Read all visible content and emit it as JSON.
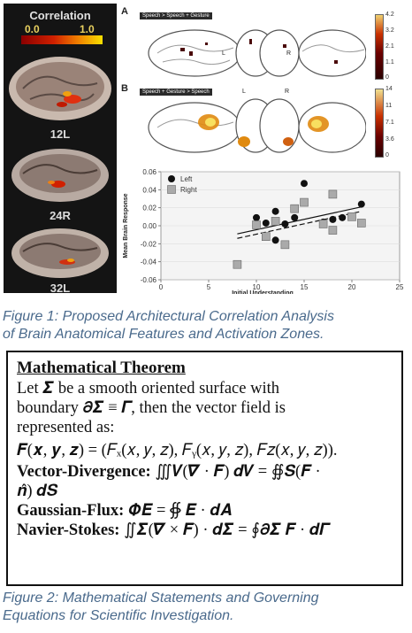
{
  "brain_panel": {
    "title": "Correlation",
    "scale_min": "0.0",
    "scale_max": "1.0",
    "slices": [
      "12L",
      "24R",
      "32L"
    ]
  },
  "panel_ab": {
    "a_letter": "A",
    "a_tag": "Speech > Speech + Gesture",
    "a_scale": [
      "4.2",
      "3.2",
      "2.1",
      "1.1",
      "0"
    ],
    "b_letter": "B",
    "b_tag": "Speech + Gesture > Speech",
    "b_scale": [
      "14",
      "11",
      "7.1",
      "3.6",
      "0"
    ],
    "hemi_labels": [
      "L",
      "R",
      "L",
      "R"
    ]
  },
  "chart_data": {
    "type": "scatter",
    "xlabel": "Initial Understanding",
    "ylabel": "Mean Brain Response",
    "xlim": [
      0,
      25
    ],
    "ylim": [
      -0.06,
      0.06
    ],
    "xticks": [
      "0",
      "5",
      "10",
      "15",
      "20",
      "25"
    ],
    "yticks": [
      "0.06",
      "0.04",
      "0.02",
      "0.00",
      "-0.02",
      "-0.04",
      "-0.06"
    ],
    "legend_position": "top-left",
    "series": [
      {
        "name": "Left",
        "marker": "circle",
        "color": "#111111",
        "x": [
          8,
          10,
          11,
          12,
          12,
          13,
          14,
          15,
          17,
          18,
          19,
          21
        ],
        "y": [
          -0.043,
          0.009,
          0.003,
          0.016,
          -0.016,
          0.002,
          0.009,
          0.047,
          0.004,
          0.007,
          0.009,
          0.024
        ]
      },
      {
        "name": "Right",
        "marker": "square",
        "color": "#aaaaaa",
        "x": [
          8,
          10,
          11,
          12,
          13,
          14,
          15,
          17,
          18,
          18,
          20,
          21
        ],
        "y": [
          -0.043,
          0.001,
          -0.012,
          0.005,
          -0.021,
          0.019,
          0.026,
          0.002,
          0.035,
          -0.005,
          0.01,
          0.003
        ]
      }
    ],
    "trendlines": [
      {
        "style": "solid",
        "x": [
          8,
          21
        ],
        "y": [
          -0.009,
          0.021
        ]
      },
      {
        "style": "dashed",
        "x": [
          8,
          21
        ],
        "y": [
          -0.014,
          0.016
        ]
      }
    ]
  },
  "caption1": [
    "Figure 1: Proposed Architectural Correlation Analysis",
    "of Brain Anatomical Features and Activation Zones."
  ],
  "theorem": {
    "title": "Mathematical Theorem",
    "line1": "Let 𝜮 be a smooth oriented surface with",
    "line2": "boundary 𝝏𝜮 ≡ 𝜞, then the vector field is",
    "line3": "represented as:",
    "field_eq": "𝑭(𝒙, 𝒚, 𝒛) = (𝐹ₓ(𝑥, 𝑦, 𝑧), 𝐹ᵧ(𝑥, 𝑦, 𝑧), 𝐹𝑧(𝑥, 𝑦, 𝑧)).",
    "div_label": "Vector-Divergence:",
    "div_eq": "∭𝑽(𝜵 · 𝑭) 𝒅𝑽 = ∯𝑺(𝑭 ·",
    "div_eq2": "𝒏̂) 𝒅𝑺",
    "gauss_label": "Gaussian-Flux:",
    "gauss_eq": "𝜱𝑬 = ∯ 𝑬 · 𝒅𝑨",
    "ns_label": "Navier-Stokes:",
    "ns_eq": "∬𝜮(𝜵 × 𝑭) · 𝒅𝜮 = ∮𝝏𝜮 𝑭 · 𝒅𝜞"
  },
  "caption2": [
    "Figure 2: Mathematical Statements and Governing",
    "Equations for Scientific Investigation."
  ]
}
